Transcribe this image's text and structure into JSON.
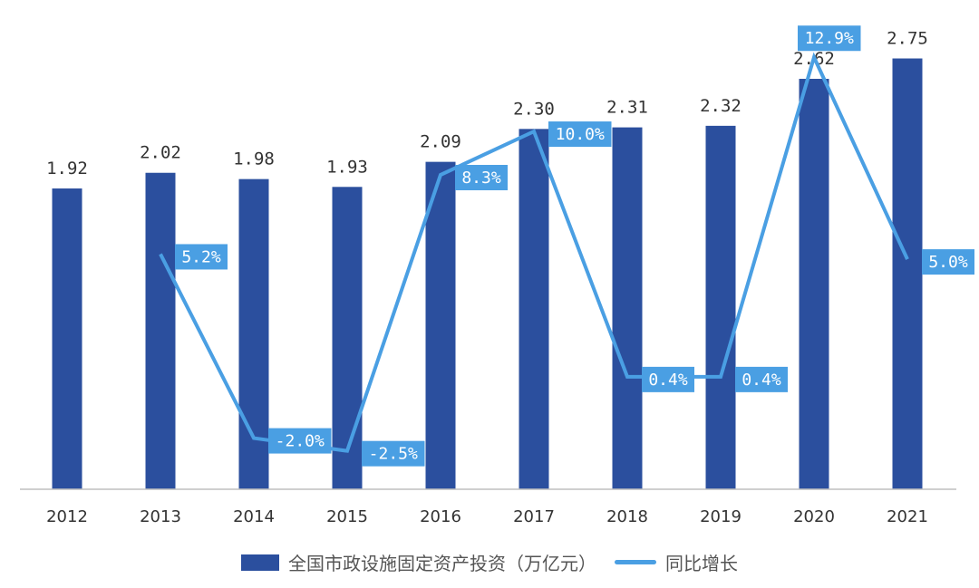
{
  "chart_data": {
    "type": "bar+line",
    "categories": [
      "2012",
      "2013",
      "2014",
      "2015",
      "2016",
      "2017",
      "2018",
      "2019",
      "2020",
      "2021"
    ],
    "series": [
      {
        "name": "全国市政设施固定资产投资（万亿元）",
        "type": "bar",
        "axis": "left",
        "values": [
          1.92,
          2.02,
          1.98,
          1.93,
          2.09,
          2.3,
          2.31,
          2.32,
          2.62,
          2.75
        ],
        "labels": [
          "1.92",
          "2.02",
          "1.98",
          "1.93",
          "2.09",
          "2.30",
          "2.31",
          "2.32",
          "2.62",
          "2.75"
        ]
      },
      {
        "name": "同比增长",
        "type": "line",
        "axis": "right",
        "values": [
          null,
          5.2,
          -2.0,
          -2.5,
          8.3,
          10.0,
          0.4,
          0.4,
          12.9,
          5.0
        ],
        "labels": [
          "",
          "5.2%",
          "-2.0%",
          "-2.5%",
          "8.3%",
          "10.0%",
          "0.4%",
          "0.4%",
          "12.9%",
          "5.0%"
        ]
      }
    ],
    "ylim_left": [
      0,
      3.1
    ],
    "ylim_right": [
      -4,
      15
    ],
    "grid": false,
    "legend": "bottom",
    "colors": {
      "bar": "#2b4f9e",
      "line": "#4a9fe3",
      "label_box": "#4a9fe3",
      "axis": "#bfbfbf",
      "text": "#333333"
    }
  }
}
